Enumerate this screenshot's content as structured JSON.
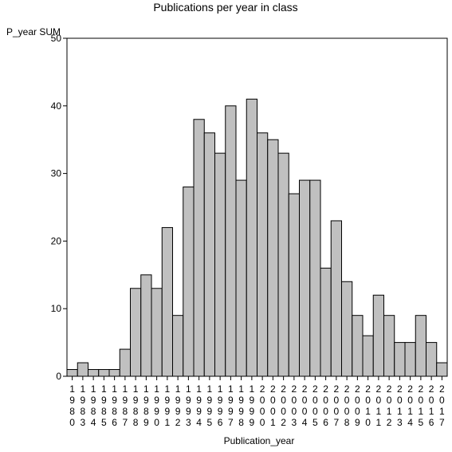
{
  "chart_data": {
    "type": "bar",
    "title": "Publications per year in class",
    "ylabel": "P_year SUM",
    "xlabel": "Publication_year",
    "ylim": [
      0,
      50
    ],
    "yticks": [
      0,
      10,
      20,
      30,
      40,
      50
    ],
    "grid": false,
    "categories": [
      "1980",
      "1983",
      "1984",
      "1985",
      "1986",
      "1987",
      "1988",
      "1989",
      "1990",
      "1991",
      "1992",
      "1993",
      "1994",
      "1995",
      "1996",
      "1997",
      "1998",
      "1999",
      "2000",
      "2001",
      "2002",
      "2003",
      "2004",
      "2005",
      "2006",
      "2007",
      "2008",
      "2009",
      "2010",
      "2011",
      "2012",
      "2013",
      "2014",
      "2015",
      "2016",
      "2017"
    ],
    "values": [
      1,
      2,
      1,
      1,
      1,
      4,
      13,
      15,
      13,
      22,
      9,
      28,
      38,
      36,
      33,
      40,
      29,
      41,
      36,
      35,
      33,
      27,
      29,
      29,
      16,
      23,
      14,
      9,
      6,
      12,
      9,
      5,
      5,
      9,
      5,
      2
    ],
    "colors": {
      "bar_fill": "#c0c0c0",
      "bar_stroke": "#000000",
      "axis": "#000000"
    }
  }
}
